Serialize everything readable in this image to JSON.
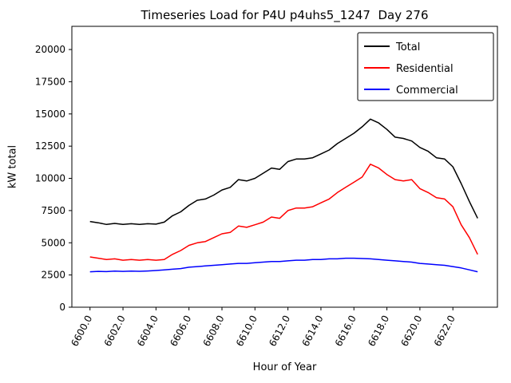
{
  "figure": {
    "title": "Timeseries Load for P4U p4uhs5_1247  Day 276",
    "xlabel": "Hour of Year",
    "ylabel": "kW total"
  },
  "chart_data": {
    "type": "line",
    "title": "Timeseries Load for P4U p4uhs5_1247  Day 276",
    "xlabel": "Hour of Year",
    "ylabel": "kW total",
    "grid": false,
    "legend_position": "upper right",
    "xlim": [
      6598.9,
      6624.7
    ],
    "ylim": [
      0,
      21800
    ],
    "xticks": [
      6600,
      6602,
      6604,
      6606,
      6608,
      6610,
      6612,
      6614,
      6616,
      6618,
      6620,
      6622
    ],
    "xtick_labels": [
      "6600.0",
      "6602.0",
      "6604.0",
      "6606.0",
      "6608.0",
      "6610.0",
      "6612.0",
      "6614.0",
      "6616.0",
      "6618.0",
      "6620.0",
      "6622.0"
    ],
    "yticks": [
      0,
      2500,
      5000,
      7500,
      10000,
      12500,
      15000,
      17500,
      20000
    ],
    "ytick_labels": [
      "0",
      "2500",
      "5000",
      "7500",
      "10000",
      "12500",
      "15000",
      "17500",
      "20000"
    ],
    "x": [
      6600.0,
      6600.5,
      6601.0,
      6601.5,
      6602.0,
      6602.5,
      6603.0,
      6603.5,
      6604.0,
      6604.5,
      6605.0,
      6605.5,
      6606.0,
      6606.5,
      6607.0,
      6607.5,
      6608.0,
      6608.5,
      6609.0,
      6609.5,
      6610.0,
      6610.5,
      6611.0,
      6611.5,
      6612.0,
      6612.5,
      6613.0,
      6613.5,
      6614.0,
      6614.5,
      6615.0,
      6615.5,
      6616.0,
      6616.5,
      6617.0,
      6617.5,
      6618.0,
      6618.5,
      6619.0,
      6619.5,
      6620.0,
      6620.5,
      6621.0,
      6621.5,
      6622.0,
      6622.5,
      6623.0,
      6623.5
    ],
    "series": [
      {
        "name": "Total",
        "color": "#000000",
        "values": [
          6650,
          6550,
          6420,
          6500,
          6420,
          6480,
          6420,
          6480,
          6450,
          6600,
          7100,
          7400,
          7900,
          8300,
          8400,
          8700,
          9100,
          9300,
          9900,
          9800,
          10000,
          10400,
          10800,
          10700,
          11300,
          11500,
          11500,
          11600,
          11900,
          12200,
          12700,
          13100,
          13500,
          14000,
          14600,
          14300,
          13800,
          13200,
          13100,
          12900,
          12400,
          12100,
          11600,
          11500,
          10900,
          9600,
          8200,
          6900
        ]
      },
      {
        "name": "Residential",
        "color": "#ff0000",
        "values": [
          3900,
          3800,
          3700,
          3750,
          3650,
          3700,
          3650,
          3700,
          3650,
          3700,
          4100,
          4400,
          4800,
          5000,
          5100,
          5400,
          5700,
          5800,
          6300,
          6200,
          6400,
          6600,
          7000,
          6900,
          7500,
          7700,
          7700,
          7800,
          8100,
          8400,
          8900,
          9300,
          9700,
          10100,
          11100,
          10800,
          10300,
          9900,
          9800,
          9900,
          9200,
          8900,
          8500,
          8400,
          7800,
          6400,
          5400,
          4100
        ]
      },
      {
        "name": "Commercial",
        "color": "#0000ff",
        "values": [
          2750,
          2780,
          2760,
          2800,
          2780,
          2800,
          2790,
          2810,
          2850,
          2900,
          2950,
          3000,
          3100,
          3150,
          3200,
          3250,
          3300,
          3350,
          3400,
          3400,
          3450,
          3500,
          3550,
          3550,
          3600,
          3650,
          3650,
          3700,
          3700,
          3750,
          3750,
          3800,
          3800,
          3780,
          3750,
          3700,
          3650,
          3600,
          3550,
          3500,
          3400,
          3350,
          3300,
          3250,
          3150,
          3050,
          2900,
          2750
        ]
      }
    ]
  }
}
